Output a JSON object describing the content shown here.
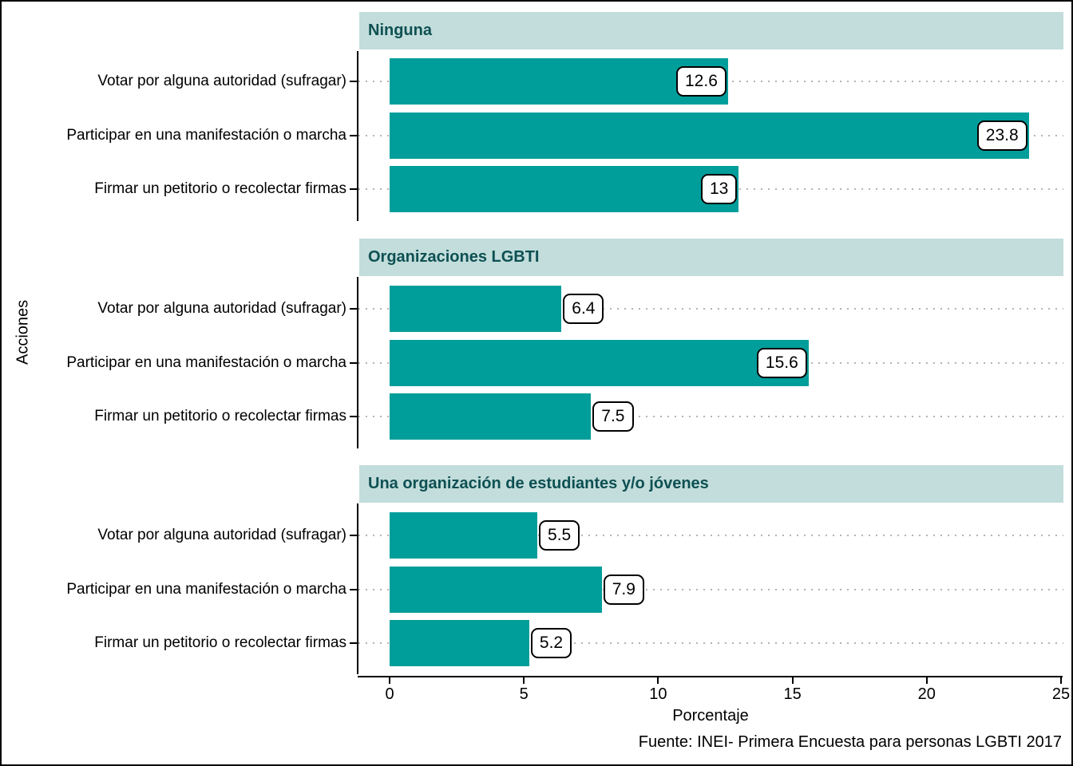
{
  "chart_data": {
    "type": "bar",
    "orientation": "horizontal",
    "xlabel": "Porcentaje",
    "ylabel": "Acciones",
    "caption": "Fuente: INEI- Primera Encuesta para personas LGBTI 2017",
    "xlim": [
      0,
      25
    ],
    "x_ticks": [
      0,
      5,
      10,
      15,
      20,
      25
    ],
    "x_tick_labels": [
      "0",
      "5",
      "10",
      "15",
      "20",
      "25"
    ],
    "grid": "horizontal dotted",
    "legend": "none",
    "categories": [
      "Votar por alguna autoridad (sufragar)",
      "Participar en una manifestación o marcha",
      "Firmar un petitorio o recolectar firmas"
    ],
    "facets": [
      {
        "label": "Ninguna",
        "bars": [
          {
            "value": 12.6,
            "label": "12.6"
          },
          {
            "value": 23.8,
            "label": "23.8"
          },
          {
            "value": 13,
            "label": "13"
          }
        ]
      },
      {
        "label": "Organizaciones LGBTI",
        "bars": [
          {
            "value": 6.4,
            "label": "6.4"
          },
          {
            "value": 15.6,
            "label": "15.6"
          },
          {
            "value": 7.5,
            "label": "7.5"
          }
        ]
      },
      {
        "label": "Una organización de estudiantes y/o jóvenes",
        "bars": [
          {
            "value": 5.5,
            "label": "5.5"
          },
          {
            "value": 7.9,
            "label": "7.9"
          },
          {
            "value": 5.2,
            "label": "5.2"
          }
        ]
      }
    ]
  },
  "colors": {
    "bar": "#009E9B",
    "strip_bg": "#C2DDDB",
    "strip_text": "#0E5053",
    "grid": "#B3B3B3",
    "axis": "#000000",
    "label_box_bg": "#FFFFFF",
    "label_box_border": "#000000",
    "text": "#000000"
  }
}
